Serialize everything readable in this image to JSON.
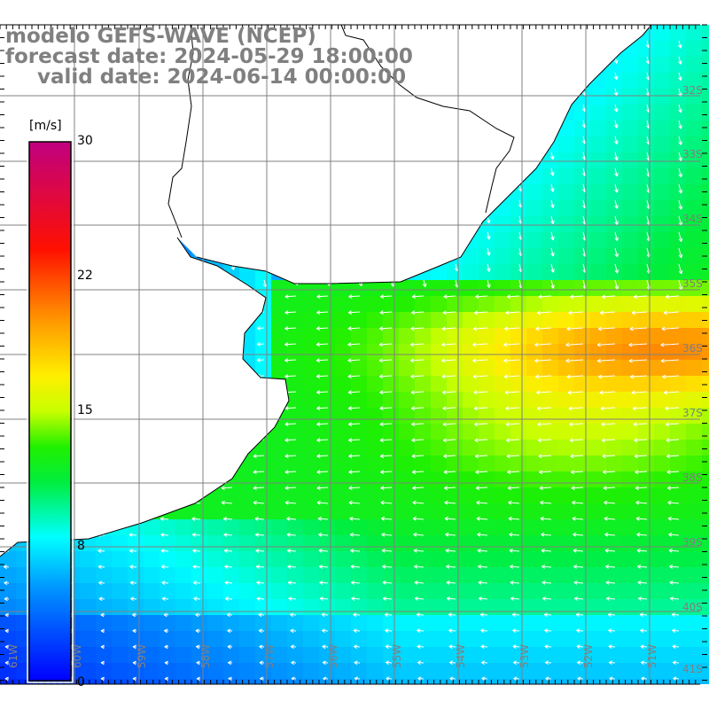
{
  "title": {
    "model": "modelo GEFS-WAVE (NCEP)",
    "forecast": "forecast date: 2024-05-29 18:00:00",
    "valid": "valid date: 2024-06-14 00:00:00"
  },
  "colorbar": {
    "unit": "[m/s]",
    "min": 0,
    "max": 30,
    "ticks": [
      "30",
      "22",
      "15",
      "8",
      "0"
    ],
    "tick_values": [
      30,
      22,
      15,
      8,
      0
    ],
    "stops": [
      {
        "v": 0,
        "color": "#0000ff"
      },
      {
        "v": 5,
        "color": "#0090ff"
      },
      {
        "v": 8,
        "color": "#00ffff"
      },
      {
        "v": 11,
        "color": "#00ee40"
      },
      {
        "v": 13,
        "color": "#20f000"
      },
      {
        "v": 15,
        "color": "#c8ff00"
      },
      {
        "v": 17,
        "color": "#ffee00"
      },
      {
        "v": 20,
        "color": "#ff9900"
      },
      {
        "v": 24,
        "color": "#ff1000"
      },
      {
        "v": 30,
        "color": "#c00080"
      }
    ]
  },
  "axes": {
    "lon_labels": [
      "61W",
      "60W",
      "59W",
      "58W",
      "57W",
      "56W",
      "55W",
      "54W",
      "53W",
      "52W",
      "51W"
    ],
    "lat_labels": [
      "32S",
      "33S",
      "34S",
      "35S",
      "36S",
      "37S",
      "38S",
      "39S",
      "40S",
      "41S"
    ]
  },
  "colors": {
    "grid": "#808080",
    "label": "#808080",
    "coast": "#000000",
    "land": "#ffffff",
    "arrow": "#ffffff"
  }
}
